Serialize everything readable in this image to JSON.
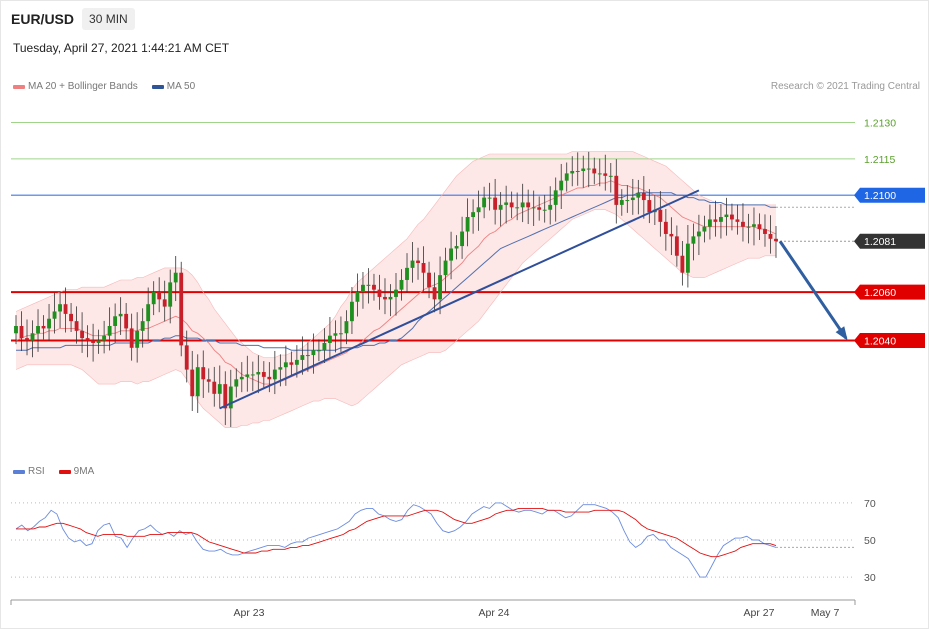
{
  "header": {
    "symbol": "EUR/USD",
    "timeframe": "30 MIN",
    "datetime": "Tuesday, April 27, 2021 1:44:21 AM CET",
    "copyright": "Research © 2021 Trading Central"
  },
  "legend_main": [
    {
      "label": "MA 20 + Bollinger Bands",
      "color": "#f08080"
    },
    {
      "label": "MA 50",
      "color": "#2f5597"
    }
  ],
  "legend_rsi": [
    {
      "label": "RSI",
      "color": "#5b7fd6"
    },
    {
      "label": "9MA",
      "color": "#e01010"
    }
  ],
  "chart_data": [
    {
      "type": "candlestick",
      "title": "EUR/USD",
      "ylim": [
        1.2001,
        1.2136
      ],
      "x_labels": [
        "Apr 23",
        "Apr 24",
        "Apr 27",
        "May 7"
      ],
      "price_levels": [
        {
          "value": 1.213,
          "label": "1.2130",
          "kind": "target",
          "color": "#5aa02c"
        },
        {
          "value": 1.2115,
          "label": "1.2115",
          "kind": "target",
          "color": "#5aa02c"
        },
        {
          "value": 1.21,
          "label": "1.2100",
          "kind": "resistance",
          "color": "#1f66e5"
        },
        {
          "value": 1.2081,
          "label": "1.2081",
          "kind": "last",
          "color": "#333333"
        },
        {
          "value": 1.206,
          "label": "1.2060",
          "kind": "support",
          "color": "#e00000"
        },
        {
          "value": 1.204,
          "label": "1.2040",
          "kind": "support",
          "color": "#e00000"
        }
      ],
      "candles_close": [
        1.2046,
        1.2041,
        1.204,
        1.2043,
        1.2046,
        1.2045,
        1.2049,
        1.2052,
        1.2055,
        1.2051,
        1.2048,
        1.2044,
        1.2041,
        1.204,
        1.2039,
        1.204,
        1.2042,
        1.2046,
        1.205,
        1.2051,
        1.2045,
        1.2037,
        1.2044,
        1.2048,
        1.2055,
        1.206,
        1.2057,
        1.2054,
        1.2064,
        1.2068,
        1.2038,
        1.2028,
        1.2017,
        1.2029,
        1.2024,
        1.2023,
        1.2018,
        1.2022,
        1.2012,
        1.2021,
        1.2024,
        1.2025,
        1.2026,
        1.2026,
        1.2027,
        1.2025,
        1.2024,
        1.2028,
        1.2029,
        1.2031,
        1.203,
        1.2032,
        1.2034,
        1.2034,
        1.2036,
        1.2036,
        1.2039,
        1.2042,
        1.2043,
        1.2043,
        1.2048,
        1.2056,
        1.206,
        1.2063,
        1.2063,
        1.2061,
        1.2058,
        1.2057,
        1.2058,
        1.2061,
        1.2065,
        1.207,
        1.2073,
        1.2072,
        1.2068,
        1.2062,
        1.2057,
        1.2067,
        1.2073,
        1.2078,
        1.2079,
        1.2085,
        1.2091,
        1.2093,
        1.2095,
        1.2099,
        1.2099,
        1.2094,
        1.2096,
        1.2097,
        1.2095,
        1.2095,
        1.2097,
        1.2095,
        1.2095,
        1.2094,
        1.2094,
        1.2096,
        1.2102,
        1.2106,
        1.2109,
        1.211,
        1.211,
        1.2111,
        1.2111,
        1.2109,
        1.2109,
        1.2108,
        1.2108,
        1.2096,
        1.2098,
        1.2098,
        1.2099,
        1.2101,
        1.2098,
        1.2093,
        1.2094,
        1.2089,
        1.2084,
        1.2083,
        1.2075,
        1.2068,
        1.208,
        1.2083,
        1.2085,
        1.2087,
        1.209,
        1.2089,
        1.2091,
        1.2092,
        1.209,
        1.2089,
        1.2087,
        1.2087,
        1.2088,
        1.2086,
        1.2084,
        1.2082,
        1.2081
      ],
      "ma20": [
        1.204,
        1.2041,
        1.2042,
        1.2042,
        1.2043,
        1.2043,
        1.2044,
        1.2044,
        1.2045,
        1.2045,
        1.2045,
        1.2045,
        1.2044,
        1.2043,
        1.2042,
        1.2042,
        1.2042,
        1.2043,
        1.2043,
        1.2044,
        1.2044,
        1.2044,
        1.2044,
        1.2045,
        1.2045,
        1.2046,
        1.2047,
        1.2048,
        1.2049,
        1.205,
        1.2049,
        1.2047,
        1.2044,
        1.2043,
        1.2041,
        1.2039,
        1.2036,
        1.2034,
        1.2031,
        1.203,
        1.2028,
        1.2026,
        1.2025,
        1.2024,
        1.2023,
        1.2022,
        1.2022,
        1.2022,
        1.2023,
        1.2024,
        1.2025,
        1.2026,
        1.2027,
        1.2028,
        1.2029,
        1.203,
        1.2031,
        1.2032,
        1.2033,
        1.2034,
        1.2035,
        1.2037,
        1.2038,
        1.204,
        1.2042,
        1.2044,
        1.2045,
        1.2047,
        1.2049,
        1.2051,
        1.2053,
        1.2055,
        1.2057,
        1.2059,
        1.2061,
        1.2062,
        1.2063,
        1.2064,
        1.2066,
        1.2068,
        1.207,
        1.2072,
        1.2075,
        1.2077,
        1.2079,
        1.2082,
        1.2084,
        1.2085,
        1.2087,
        1.2089,
        1.209,
        1.2092,
        1.2093,
        1.2094,
        1.2095,
        1.2096,
        1.2097,
        1.2098,
        1.2099,
        1.21,
        1.2101,
        1.2102,
        1.2103,
        1.2103,
        1.2104,
        1.2104,
        1.2105,
        1.2105,
        1.2106,
        1.2105,
        1.2104,
        1.2104,
        1.2103,
        1.2103,
        1.2102,
        1.2101,
        1.21,
        1.2099,
        1.2097,
        1.2095,
        1.2093,
        1.2091,
        1.209,
        1.2089,
        1.2088,
        1.2087,
        1.2087,
        1.2087,
        1.2087,
        1.2087,
        1.2087,
        1.2087,
        1.2087,
        1.2087,
        1.2087,
        1.2086,
        1.2086,
        1.2085,
        1.2084
      ],
      "bb_upper": [
        1.2052,
        1.2053,
        1.2054,
        1.2055,
        1.2056,
        1.2057,
        1.2058,
        1.2059,
        1.206,
        1.2061,
        1.2061,
        1.2061,
        1.2062,
        1.2062,
        1.2062,
        1.2062,
        1.2062,
        1.2063,
        1.2064,
        1.2065,
        1.2065,
        1.2065,
        1.2066,
        1.2066,
        1.2067,
        1.2068,
        1.2069,
        1.207,
        1.207,
        1.207,
        1.207,
        1.2069,
        1.2067,
        1.2064,
        1.206,
        1.2057,
        1.2053,
        1.205,
        1.2047,
        1.2044,
        1.2041,
        1.2039,
        1.2037,
        1.2035,
        1.2034,
        1.2033,
        1.2033,
        1.2033,
        1.2034,
        1.2034,
        1.2035,
        1.2036,
        1.2037,
        1.2039,
        1.2041,
        1.2043,
        1.2045,
        1.2047,
        1.205,
        1.2054,
        1.2057,
        1.2061,
        1.2064,
        1.2066,
        1.2068,
        1.207,
        1.2072,
        1.2074,
        1.2076,
        1.2078,
        1.208,
        1.2082,
        1.2085,
        1.2088,
        1.209,
        1.2093,
        1.2096,
        1.2099,
        1.2102,
        1.2105,
        1.2108,
        1.211,
        1.2112,
        1.2114,
        1.2115,
        1.2116,
        1.2117,
        1.2117,
        1.2117,
        1.2117,
        1.2117,
        1.2117,
        1.2117,
        1.2117,
        1.2117,
        1.2117,
        1.2117,
        1.2117,
        1.2117,
        1.2117,
        1.2117,
        1.2118,
        1.2118,
        1.2118,
        1.2118,
        1.2118,
        1.2118,
        1.2118,
        1.2118,
        1.2118,
        1.2118,
        1.2118,
        1.2118,
        1.2117,
        1.2116,
        1.2115,
        1.2114,
        1.2113,
        1.2112,
        1.211,
        1.2108,
        1.2106,
        1.2104,
        1.2102,
        1.21,
        1.2099,
        1.2098,
        1.2097,
        1.2096,
        1.2096,
        1.2096,
        1.2096,
        1.2096,
        1.2096,
        1.2096,
        1.2096,
        1.2096,
        1.2096,
        1.2096
      ],
      "bb_lower": [
        1.2028,
        1.2029,
        1.203,
        1.203,
        1.203,
        1.203,
        1.203,
        1.203,
        1.203,
        1.203,
        1.203,
        1.2029,
        1.2028,
        1.2026,
        1.2024,
        1.2022,
        1.2022,
        1.2022,
        1.2022,
        1.2023,
        1.2023,
        1.2023,
        1.2022,
        1.2023,
        1.2023,
        1.2024,
        1.2025,
        1.2026,
        1.2027,
        1.2028,
        1.2027,
        1.2024,
        1.202,
        1.2015,
        1.2012,
        1.201,
        1.2008,
        1.2006,
        1.2004,
        1.2004,
        1.2004,
        1.2005,
        1.2005,
        1.2006,
        1.2006,
        1.2007,
        1.2007,
        1.2008,
        1.2009,
        1.201,
        1.2011,
        1.2012,
        1.2013,
        1.2014,
        1.2015,
        1.2015,
        1.2016,
        1.2016,
        1.2016,
        1.2015,
        1.2014,
        1.2013,
        1.2014,
        1.2016,
        1.2018,
        1.202,
        1.2022,
        1.2024,
        1.2026,
        1.2028,
        1.203,
        1.2031,
        1.2032,
        1.2033,
        1.2034,
        1.2035,
        1.2035,
        1.2035,
        1.2036,
        1.2038,
        1.204,
        1.2042,
        1.2044,
        1.2046,
        1.2048,
        1.2051,
        1.2054,
        1.2057,
        1.206,
        1.2063,
        1.2066,
        1.2069,
        1.2072,
        1.2074,
        1.2076,
        1.2078,
        1.208,
        1.2082,
        1.2084,
        1.2086,
        1.2088,
        1.209,
        1.2091,
        1.2092,
        1.2093,
        1.2094,
        1.2094,
        1.2094,
        1.2093,
        1.2092,
        1.209,
        1.2088,
        1.2086,
        1.2084,
        1.2082,
        1.208,
        1.2078,
        1.2076,
        1.2074,
        1.2072,
        1.207,
        1.2068,
        1.2067,
        1.2066,
        1.2066,
        1.2066,
        1.2067,
        1.2068,
        1.2069,
        1.207,
        1.2071,
        1.2072,
        1.2073,
        1.2074,
        1.2074,
        1.2074,
        1.2075,
        1.2075,
        1.2075
      ],
      "ma50": [
        1.2036,
        1.2036,
        1.2036,
        1.2037,
        1.2037,
        1.2037,
        1.2037,
        1.2037,
        1.2037,
        1.2038,
        1.2038,
        1.2038,
        1.2038,
        1.2038,
        1.2038,
        1.2038,
        1.2038,
        1.2038,
        1.2039,
        1.2039,
        1.2039,
        1.2039,
        1.2039,
        1.2039,
        1.2039,
        1.204,
        1.204,
        1.2041,
        1.2041,
        1.2042,
        1.2042,
        1.2041,
        1.2041,
        1.2041,
        1.204,
        1.204,
        1.204,
        1.2039,
        1.2039,
        1.2039,
        1.2039,
        1.2038,
        1.2038,
        1.2038,
        1.2038,
        1.2037,
        1.2037,
        1.2037,
        1.2037,
        1.2037,
        1.2036,
        1.2036,
        1.2036,
        1.2036,
        1.2036,
        1.2036,
        1.2036,
        1.2036,
        1.2036,
        1.2037,
        1.2037,
        1.2037,
        1.2037,
        1.2038,
        1.2038,
        1.2038,
        1.2039,
        1.2039,
        1.204,
        1.204,
        1.2041,
        1.2043,
        1.2045,
        1.2048,
        1.205,
        1.2052,
        1.2054,
        1.2056,
        1.2058,
        1.206,
        1.2062,
        1.2064,
        1.2066,
        1.2068,
        1.207,
        1.2072,
        1.2074,
        1.2076,
        1.2078,
        1.2079,
        1.208,
        1.2081,
        1.2082,
        1.2083,
        1.2084,
        1.2085,
        1.2086,
        1.2087,
        1.2088,
        1.2089,
        1.209,
        1.2091,
        1.2092,
        1.2093,
        1.2094,
        1.2095,
        1.2096,
        1.2097,
        1.2098,
        1.2099,
        1.2099,
        1.21,
        1.21,
        1.2101,
        1.2101,
        1.2101,
        1.2101,
        1.2101,
        1.2101,
        1.2101,
        1.21,
        1.21,
        1.2099,
        1.2099,
        1.2098,
        1.2098,
        1.2097,
        1.2097,
        1.2097,
        1.2096,
        1.2096,
        1.2096,
        1.2096,
        1.2096,
        1.2096,
        1.2096,
        1.2096,
        1.2095,
        1.2095
      ]
    },
    {
      "type": "line",
      "title": "RSI",
      "ylim": [
        22,
        78
      ],
      "y_ticks": [
        70,
        50,
        30
      ],
      "rsi": [
        56,
        58,
        55,
        57,
        60,
        62,
        66,
        64,
        56,
        51,
        49,
        50,
        47,
        48,
        55,
        58,
        59,
        52,
        51,
        46,
        51,
        55,
        56,
        58,
        55,
        53,
        54,
        52,
        55,
        53,
        54,
        49,
        45,
        44,
        44,
        45,
        43,
        42,
        42,
        43,
        44,
        45,
        46,
        47,
        47,
        47,
        46,
        48,
        49,
        49,
        51,
        52,
        53,
        54,
        55,
        56,
        58,
        60,
        64,
        66,
        67,
        67,
        64,
        63,
        61,
        60,
        61,
        66,
        69,
        68,
        66,
        64,
        59,
        55,
        54,
        55,
        57,
        60,
        64,
        66,
        68,
        67,
        70,
        70,
        68,
        66,
        65,
        66,
        66,
        65,
        64,
        66,
        66,
        64,
        62,
        63,
        66,
        69,
        69,
        69,
        68,
        67,
        65,
        62,
        55,
        49,
        46,
        48,
        52,
        53,
        50,
        50,
        46,
        44,
        42,
        40,
        35,
        30,
        30,
        36,
        42,
        47,
        49,
        51,
        51,
        52,
        50,
        50,
        48,
        47,
        46
      ],
      "ma9": [
        56,
        56,
        56,
        56,
        57,
        57,
        58,
        59,
        59,
        58,
        57,
        56,
        54,
        53,
        52,
        53,
        53,
        53,
        53,
        52,
        52,
        52,
        52,
        53,
        53,
        53,
        54,
        54,
        54,
        54,
        54,
        53,
        51,
        49,
        48,
        47,
        46,
        45,
        44,
        43,
        43,
        43,
        44,
        44,
        45,
        45,
        45,
        46,
        46,
        47,
        47,
        48,
        49,
        50,
        51,
        52,
        53,
        55,
        56,
        58,
        60,
        61,
        62,
        63,
        63,
        63,
        63,
        63,
        64,
        65,
        66,
        66,
        66,
        65,
        63,
        61,
        60,
        59,
        59,
        60,
        61,
        62,
        64,
        65,
        66,
        66,
        67,
        67,
        67,
        67,
        67,
        66,
        66,
        66,
        65,
        65,
        65,
        65,
        65,
        66,
        66,
        66,
        66,
        66,
        65,
        63,
        61,
        58,
        56,
        55,
        54,
        53,
        52,
        51,
        49,
        47,
        45,
        43,
        42,
        41,
        41,
        42,
        43,
        44,
        46,
        47,
        48,
        48,
        48,
        48,
        47
      ]
    }
  ]
}
